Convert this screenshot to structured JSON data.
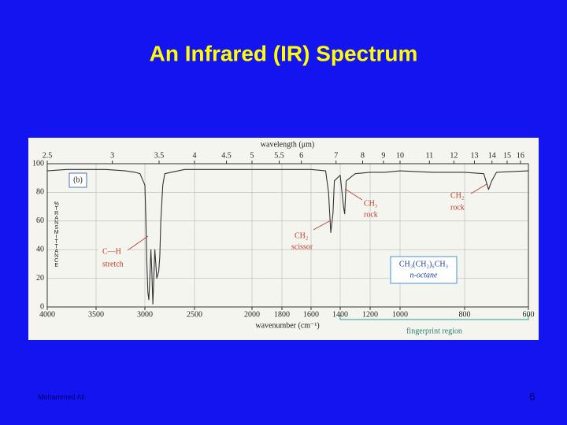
{
  "slide": {
    "title": "An Infrared (IR) Spectrum",
    "footer": "Mohammed Ali",
    "page_number": 6
  },
  "chart_data": {
    "type": "line",
    "panel_label": "(b)",
    "xlabel": "wavenumber (cm⁻¹)",
    "ylabel": "%TRANSMITTANCE",
    "x2label": "wavelength (μm)",
    "xlim": [
      4000,
      600
    ],
    "xticks": [
      4000,
      3500,
      3000,
      2500,
      2000,
      1800,
      1600,
      1400,
      1200,
      1000,
      800,
      600
    ],
    "x2ticks": [
      2.5,
      3,
      3.5,
      4,
      4.5,
      5,
      5.5,
      6,
      7,
      8,
      9,
      10,
      11,
      12,
      13,
      14,
      15,
      16
    ],
    "ylim": [
      0,
      100
    ],
    "yticks": [
      0,
      20,
      40,
      60,
      80,
      100
    ],
    "grid": true,
    "x": [
      4000,
      3800,
      3600,
      3400,
      3200,
      3100,
      3050,
      3000,
      2990,
      2980,
      2970,
      2960,
      2950,
      2940,
      2930,
      2920,
      2900,
      2880,
      2860,
      2850,
      2840,
      2820,
      2800,
      2600,
      2400,
      2200,
      2000,
      1900,
      1800,
      1600,
      1500,
      1480,
      1465,
      1450,
      1440,
      1400,
      1378,
      1370,
      1360,
      1300,
      1200,
      1100,
      1000,
      900,
      800,
      740,
      725,
      715,
      700,
      600
    ],
    "series": [
      {
        "color": "#333333",
        "values": [
          95,
          96,
          96,
          96,
          95,
          94,
          93,
          85,
          60,
          30,
          10,
          5,
          20,
          40,
          25,
          2,
          40,
          20,
          25,
          35,
          60,
          85,
          93,
          96,
          96,
          96,
          96,
          96,
          96,
          96,
          95,
          80,
          52,
          65,
          88,
          92,
          70,
          65,
          88,
          93,
          94,
          94,
          95,
          94,
          94,
          93,
          82,
          88,
          94,
          95
        ]
      }
    ],
    "annotations": {
      "ch_stretch": [
        "C—H",
        "stretch"
      ],
      "ch2_scissor": [
        "CH₂",
        "scissor"
      ],
      "ch3_rock": [
        "CH₃",
        "rock"
      ],
      "ch2_rock": [
        "CH₂",
        "rock"
      ],
      "compound": [
        "CH₃(CH₂)₆CH₃",
        "n-octane"
      ],
      "region": "fingerprint region"
    }
  }
}
